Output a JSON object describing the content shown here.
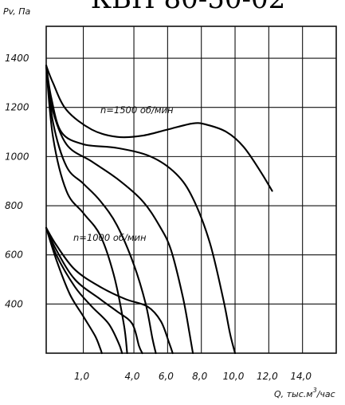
{
  "chart_data": {
    "type": "line",
    "title": "КВН 80-50-02",
    "ylabel": "Pv, Па",
    "xlabel_main": "Q, тыс.м",
    "xlabel_sup": "3",
    "xlabel_tail": "/час",
    "xlim": [
      -1.2,
      16
    ],
    "ylim": [
      200,
      1530
    ],
    "x_ticks": [
      "1,0",
      "4,0",
      "6,0",
      "8,0",
      "10,0",
      "12,0",
      "14,0"
    ],
    "y_ticks": [
      "1400",
      "1200",
      "1000",
      "800",
      "600",
      "400"
    ],
    "grid": true,
    "annotations": {
      "speed_1500": "n=1500 об/мин",
      "speed_1000": "n=1000 об/мин"
    },
    "series": [
      {
        "x": [
          -1.2,
          -0.8,
          0,
          1.5,
          3.0,
          4.5,
          6.0,
          7.5,
          8.3,
          9.5,
          10.5,
          11.5,
          12.2
        ],
        "y": [
          1370,
          1300,
          1190,
          1110,
          1080,
          1085,
          1110,
          1135,
          1130,
          1100,
          1040,
          940,
          860
        ]
      },
      {
        "x": [
          -1.2,
          -0.9,
          -0.3,
          1.0,
          3.0,
          5.0,
          6.5,
          7.5,
          8.5,
          9.3,
          9.7,
          10.0
        ],
        "y": [
          1370,
          1240,
          1100,
          1050,
          1035,
          1000,
          930,
          830,
          650,
          420,
          280,
          200
        ]
      },
      {
        "x": [
          -1.2,
          -0.9,
          0,
          1.5,
          3.0,
          4.5,
          5.5,
          6.2,
          6.9,
          7.3,
          7.5
        ],
        "y": [
          1370,
          1210,
          1050,
          980,
          910,
          820,
          720,
          620,
          430,
          280,
          200
        ]
      },
      {
        "x": [
          -1.2,
          -0.8,
          0,
          1.0,
          2.0,
          3.0,
          4.0,
          4.7,
          5.1,
          5.3
        ],
        "y": [
          1370,
          1140,
          960,
          890,
          820,
          720,
          560,
          400,
          260,
          200
        ]
      },
      {
        "x": [
          -1.2,
          -0.8,
          0,
          1.0,
          2.0,
          2.8,
          3.4,
          3.6
        ],
        "y": [
          1370,
          1080,
          860,
          770,
          680,
          520,
          320,
          200
        ]
      },
      {
        "x": [
          -1.2,
          -0.6,
          0.5,
          2.0,
          3.5,
          4.8,
          5.6,
          6.1,
          6.3
        ],
        "y": [
          710,
          640,
          540,
          470,
          420,
          390,
          330,
          240,
          200
        ]
      },
      {
        "x": [
          -1.2,
          -0.6,
          0.5,
          2.0,
          3.0,
          3.9,
          4.3,
          4.5
        ],
        "y": [
          710,
          620,
          500,
          420,
          370,
          320,
          230,
          200
        ]
      },
      {
        "x": [
          -1.2,
          -0.6,
          0.5,
          1.5,
          2.5,
          3.1,
          3.3
        ],
        "y": [
          710,
          600,
          470,
          390,
          320,
          240,
          200
        ]
      },
      {
        "x": [
          -1.2,
          -0.6,
          0.2,
          1.0,
          1.7,
          2.0,
          2.1
        ],
        "y": [
          710,
          580,
          440,
          350,
          270,
          220,
          200
        ]
      }
    ]
  }
}
